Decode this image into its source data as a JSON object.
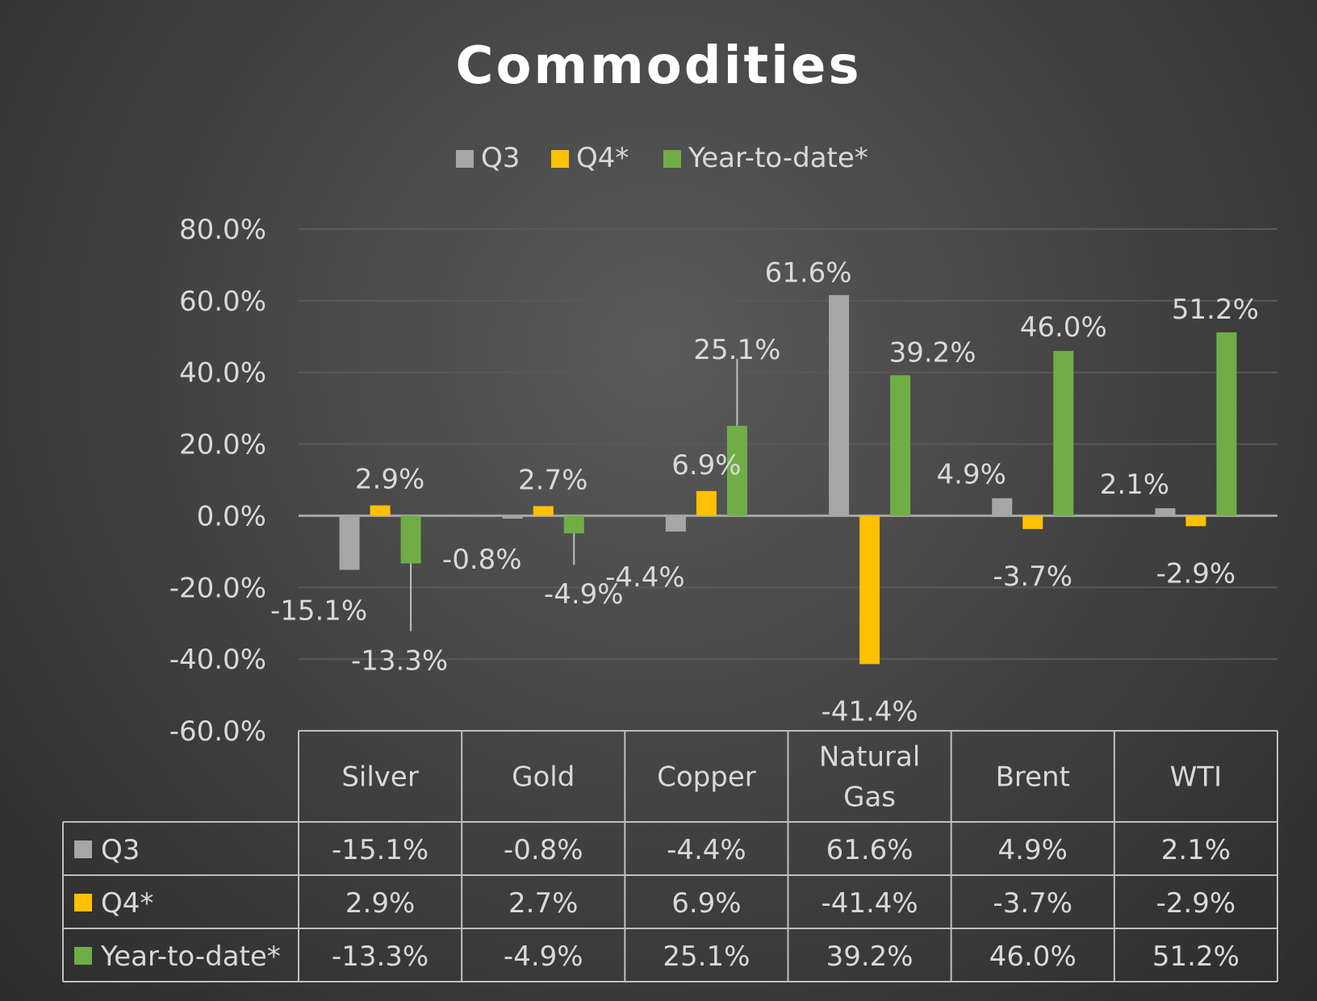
{
  "chart_data": {
    "type": "bar",
    "title": "Commodities",
    "categories": [
      "Silver",
      "Gold",
      "Copper",
      "Natural Gas",
      "Brent",
      "WTI"
    ],
    "category_lines": [
      [
        "Silver"
      ],
      [
        "Gold"
      ],
      [
        "Copper"
      ],
      [
        "Natural",
        "Gas"
      ],
      [
        "Brent"
      ],
      [
        "WTI"
      ]
    ],
    "series": [
      {
        "name": "Q3",
        "color": "#a6a6a6",
        "values": [
          -15.1,
          -0.8,
          -4.4,
          61.6,
          4.9,
          2.1
        ],
        "labels": [
          "-15.1%",
          "-0.8%",
          "-4.4%",
          "61.6%",
          "4.9%",
          "2.1%"
        ]
      },
      {
        "name": "Q4*",
        "color": "#ffc000",
        "values": [
          2.9,
          2.7,
          6.9,
          -41.4,
          -3.7,
          -2.9
        ],
        "labels": [
          "2.9%",
          "2.7%",
          "6.9%",
          "-41.4%",
          "-3.7%",
          "-2.9%"
        ]
      },
      {
        "name": "Year-to-date*",
        "color": "#70ad47",
        "values": [
          -13.3,
          -4.9,
          25.1,
          39.2,
          46.0,
          51.2
        ],
        "labels": [
          "-13.3%",
          "-4.9%",
          "25.1%",
          "39.2%",
          "46.0%",
          "51.2%"
        ]
      }
    ],
    "yticks": [
      80,
      60,
      40,
      20,
      0,
      -20,
      -40,
      -60
    ],
    "ytick_labels": [
      "80.0%",
      "60.0%",
      "40.0%",
      "20.0%",
      "0.0%",
      "-20.0%",
      "-40.0%",
      "-60.0%"
    ],
    "ylim": [
      -60,
      80
    ],
    "ylabel": "",
    "xlabel": "",
    "legend": "top-center",
    "grid": true,
    "data_table": true,
    "colors": {
      "text": "#d9d9d9",
      "title": "#ffffff",
      "gridline": "#595959",
      "axis": "#a6a6a6",
      "table_border": "#bfbfbf"
    }
  }
}
